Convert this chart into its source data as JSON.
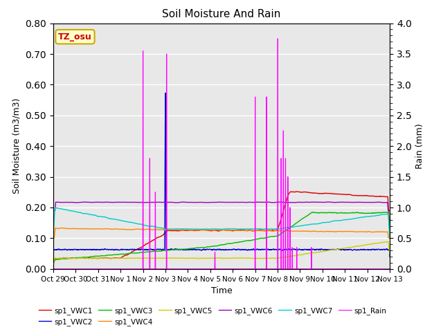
{
  "title": "Soil Moisture And Rain",
  "xlabel": "Time",
  "ylabel_left": "Soil Moisture (m3/m3)",
  "ylabel_right": "Rain (mm)",
  "xlim": [
    0,
    15
  ],
  "ylim_left": [
    0.0,
    0.8
  ],
  "ylim_right": [
    0.0,
    4.0
  ],
  "annotation_text": "TZ_osu",
  "annotation_color": "#cc0000",
  "annotation_bg": "#ffffcc",
  "annotation_border": "#ccaa00",
  "xtick_labels": [
    "Oct 29",
    "Oct 30",
    "Oct 31",
    "Nov 1",
    "Nov 2",
    "Nov 3",
    "Nov 4",
    "Nov 5",
    "Nov 6",
    "Nov 7",
    "Nov 8",
    "Nov 9",
    "Nov 10",
    "Nov 11",
    "Nov 12",
    "Nov 13"
  ],
  "xtick_positions": [
    0,
    1,
    2,
    3,
    4,
    5,
    6,
    7,
    8,
    9,
    10,
    11,
    12,
    13,
    14,
    15
  ],
  "background_color": "#e8e8e8",
  "series_colors": {
    "sp1_VWC1": "#dd0000",
    "sp1_VWC2": "#0000cc",
    "sp1_VWC3": "#00bb00",
    "sp1_VWC4": "#ff8800",
    "sp1_VWC5": "#cccc00",
    "sp1_VWC6": "#9900bb",
    "sp1_VWC7": "#00cccc",
    "sp1_Rain": "#ff00ff"
  }
}
